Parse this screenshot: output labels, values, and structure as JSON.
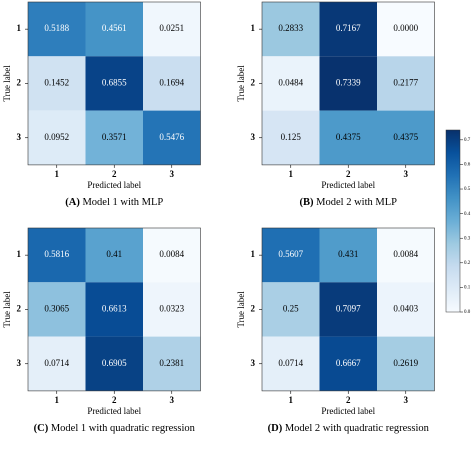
{
  "chart_data": [
    {
      "type": "heatmap",
      "tag": "(A)",
      "title": "Model 1 with MLP",
      "x_label": "Predicted label",
      "y_label": "True label",
      "x_categories": [
        "1",
        "2",
        "3"
      ],
      "y_categories": [
        "1",
        "2",
        "3"
      ],
      "values": [
        [
          0.5188,
          0.4561,
          0.0251
        ],
        [
          0.1452,
          0.6855,
          0.1694
        ],
        [
          0.0952,
          0.3571,
          0.5476
        ]
      ]
    },
    {
      "type": "heatmap",
      "tag": "(B)",
      "title": "Model 2 with MLP",
      "x_label": "Predicted label",
      "y_label": "True label",
      "x_categories": [
        "1",
        "2",
        "3"
      ],
      "y_categories": [
        "1",
        "2",
        "3"
      ],
      "values": [
        [
          0.2833,
          0.7167,
          {
            "value": 0,
            "label": "0.0000"
          }
        ],
        [
          0.0484,
          0.7339,
          0.2177
        ],
        [
          0.125,
          0.4375,
          0.4375
        ]
      ]
    },
    {
      "type": "heatmap",
      "tag": "(C)",
      "title": "Model 1 with quadratic regression",
      "x_label": "Predicted label",
      "y_label": "True label",
      "x_categories": [
        "1",
        "2",
        "3"
      ],
      "y_categories": [
        "1",
        "2",
        "3"
      ],
      "values": [
        [
          0.5816,
          0.41,
          0.0084
        ],
        [
          0.3065,
          0.6613,
          0.0323
        ],
        [
          0.0714,
          0.6905,
          0.2381
        ]
      ]
    },
    {
      "type": "heatmap",
      "tag": "(D)",
      "title": "Model 2 with quadratic regression",
      "x_label": "Predicted label",
      "y_label": "True label",
      "x_categories": [
        "1",
        "2",
        "3"
      ],
      "y_categories": [
        "1",
        "2",
        "3"
      ],
      "values": [
        [
          0.5607,
          0.431,
          0.0084
        ],
        [
          0.25,
          0.7097,
          0.0403
        ],
        [
          0.0714,
          0.6667,
          0.2619
        ]
      ]
    }
  ],
  "colorbar": {
    "colormap": "Blues",
    "zlim": [
      0,
      0.74
    ],
    "ticks": [
      {
        "value": 0,
        "label": "0.0"
      },
      0.1,
      0.2,
      0.3,
      0.4,
      0.5,
      0.6,
      0.7
    ]
  }
}
